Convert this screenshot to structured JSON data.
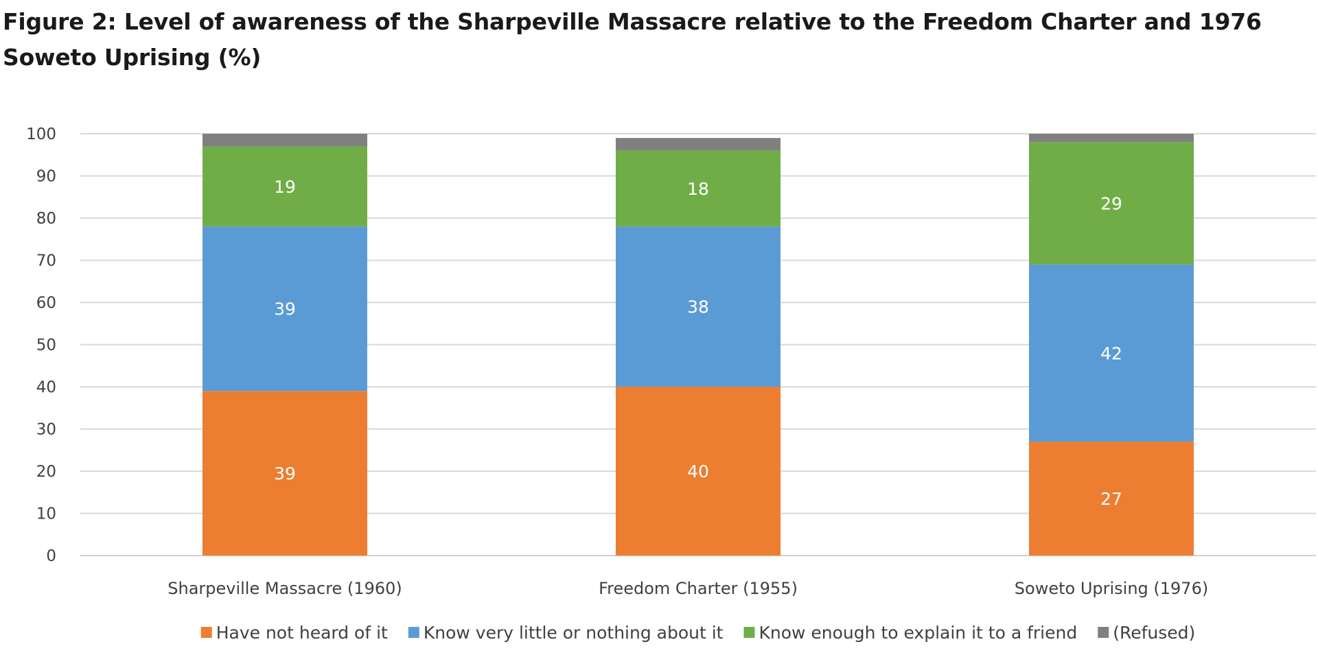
{
  "chart_data": {
    "type": "bar",
    "stacked": true,
    "title": "Figure 2: Level of awareness of the Sharpeville Massacre relative to the Freedom Charter and 1976 Soweto Uprising (%)",
    "categories": [
      "Sharpeville Massacre (1960)",
      "Freedom Charter (1955)",
      "Soweto Uprising (1976)"
    ],
    "series": [
      {
        "name": "Have not heard of it",
        "color": "#ED7D31",
        "values": [
          39,
          40,
          27
        ],
        "labels": [
          "39",
          "40",
          "27"
        ]
      },
      {
        "name": "Know very little or nothing about it",
        "color": "#5B9BD5",
        "values": [
          39,
          38,
          42
        ],
        "labels": [
          "39",
          "38",
          "42"
        ]
      },
      {
        "name": "Know enough to explain it to a friend",
        "color": "#70AD47",
        "values": [
          19,
          18,
          29
        ],
        "labels": [
          "19",
          "18",
          "29"
        ]
      },
      {
        "name": "(Refused)",
        "color": "#808080",
        "values": [
          3,
          3,
          2
        ],
        "labels": [
          "",
          "",
          ""
        ]
      }
    ],
    "ylim": [
      0,
      100
    ],
    "yticks": [
      "0",
      "10",
      "20",
      "30",
      "40",
      "50",
      "60",
      "70",
      "80",
      "90",
      "100"
    ],
    "grid": true,
    "legend_position": "bottom"
  }
}
